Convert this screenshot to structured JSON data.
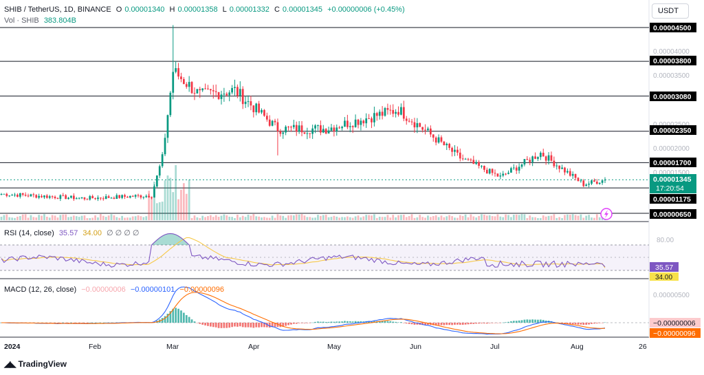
{
  "header": {
    "symbol": "SHIB / TetherUS, 1D, BINANCE",
    "o_label": "O",
    "o": "0.00001340",
    "h_label": "H",
    "h": "0.00001358",
    "l_label": "L",
    "l": "0.00001332",
    "c_label": "C",
    "c": "0.00001345",
    "change": "+0.00000006 (+0.45%)",
    "vol_label": "Vol · SHIB",
    "vol": "383.804B"
  },
  "currency_button": "USDT",
  "price_axis": {
    "grey_ticks": [
      "0.00004000",
      "0.00003500",
      "0.00002500",
      "0.00002000",
      "0.00001500"
    ],
    "levels": [
      "0.00004500",
      "0.00003800",
      "0.00003080",
      "0.00002350",
      "0.00001700",
      "0.00001175",
      "0.00000650"
    ],
    "current_price": "0.00001345",
    "countdown": "17:20:54"
  },
  "rsi": {
    "label": "RSI (14, close)",
    "value": "35.57",
    "ma_value": "34.00",
    "placeholders": "∅ ∅ ∅ ∅",
    "axis_tick": "80.00",
    "value_color": "#7e57c2",
    "ma_color": "#f7c948"
  },
  "macd": {
    "label": "MACD (12, 26, close)",
    "histogram": "−0.00000006",
    "macd_value": "−0.00000101",
    "signal_value": "−0.00000096",
    "axis_tick": "0.00000500",
    "hist_tag": "−0.00000006",
    "signal_tag": "−0.00000096",
    "macd_color": "#2962ff",
    "signal_color": "#ff6d00"
  },
  "time_axis": [
    "2024",
    "Feb",
    "Mar",
    "Apr",
    "May",
    "Jun",
    "Jul",
    "Aug",
    "26"
  ],
  "branding": "TradingView",
  "colors": {
    "up": "#089981",
    "down": "#f23645",
    "level_line": "#131722"
  },
  "chart_data": {
    "type": "candlestick",
    "symbol": "SHIB/USDT",
    "timeframe": "1D",
    "x_range": [
      "2024-01-01",
      "2024-08-13"
    ],
    "y_range": [
      4.5e-06,
      4.65e-05
    ],
    "horizontal_levels": [
      4.5e-05,
      3.8e-05,
      3.08e-05,
      2.35e-05,
      1.7e-05,
      1.175e-05,
      6.5e-06
    ],
    "last_close": 1.345e-05,
    "key_points": [
      {
        "x": "2024-01-01",
        "close": 1.05e-05
      },
      {
        "x": "2024-02-01",
        "close": 9.6e-06
      },
      {
        "x": "2024-02-26",
        "close": 1.02e-05
      },
      {
        "x": "2024-03-01",
        "close": 1.8e-05
      },
      {
        "x": "2024-03-05",
        "close": 3.6e-05,
        "high": 4.55e-05
      },
      {
        "x": "2024-03-15",
        "close": 3.1e-05
      },
      {
        "x": "2024-03-28",
        "close": 3.2e-05
      },
      {
        "x": "2024-04-13",
        "close": 2.4e-05,
        "low": 1.85e-05
      },
      {
        "x": "2024-05-01",
        "close": 2.4e-05
      },
      {
        "x": "2024-05-28",
        "close": 2.8e-05
      },
      {
        "x": "2024-06-20",
        "close": 1.8e-05
      },
      {
        "x": "2024-07-05",
        "close": 1.4e-05
      },
      {
        "x": "2024-07-20",
        "close": 1.9e-05
      },
      {
        "x": "2024-08-05",
        "close": 1.25e-05
      },
      {
        "x": "2024-08-13",
        "close": 1.345e-05
      }
    ],
    "rsi": {
      "period": 14,
      "last": 35.57,
      "ma": 34.0,
      "band": [
        30,
        70
      ]
    },
    "macd": {
      "fast": 12,
      "slow": 26,
      "hist_last": -6e-08,
      "macd_last": -1.01e-06,
      "signal_last": -9.6e-07
    }
  }
}
